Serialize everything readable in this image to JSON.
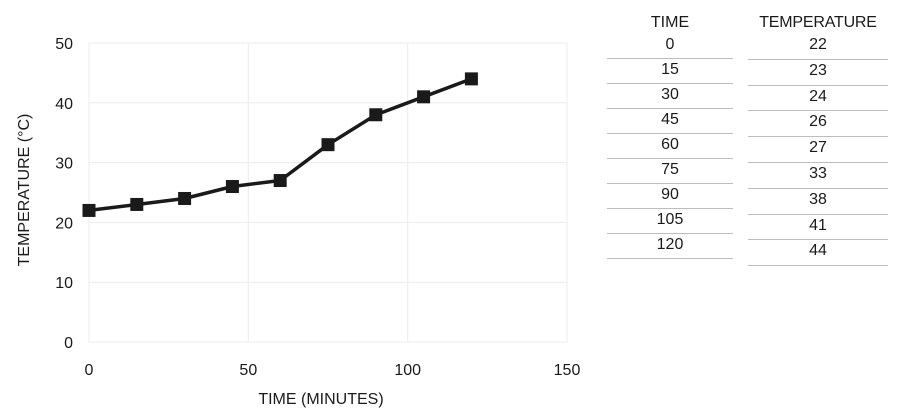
{
  "chart_data": {
    "type": "line",
    "xlabel": "TIME (MINUTES)",
    "ylabel": "TEMPERATURE (°C)",
    "xlim": [
      0,
      150
    ],
    "ylim": [
      0,
      50
    ],
    "xticks": [
      "0",
      "50",
      "100",
      "150"
    ],
    "yticks": [
      "0",
      "10",
      "20",
      "30",
      "40",
      "50"
    ],
    "grid": true,
    "marker": "square",
    "series": [
      {
        "x": [
          0,
          15,
          30,
          45,
          60,
          75,
          90,
          105,
          120
        ],
        "y": [
          22,
          23,
          24,
          26,
          27,
          33,
          38,
          41,
          44
        ]
      }
    ]
  },
  "table": {
    "time_header": "TIME",
    "temp_header": "TEMPERATURE",
    "time_values": [
      "0",
      "15",
      "30",
      "45",
      "60",
      "75",
      "90",
      "105",
      "120"
    ],
    "temp_values": [
      "22",
      "23",
      "24",
      "26",
      "27",
      "33",
      "38",
      "41",
      "44"
    ]
  },
  "colors": {
    "line": "#1a1a1a",
    "grid": "#ececec",
    "rule": "#bdbdbd"
  }
}
